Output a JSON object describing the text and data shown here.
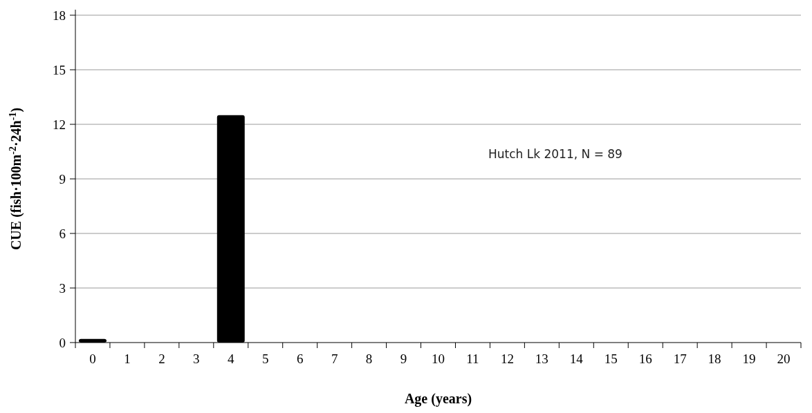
{
  "chart_data": {
    "type": "bar",
    "categories": [
      "0",
      "1",
      "2",
      "3",
      "4",
      "5",
      "6",
      "7",
      "8",
      "9",
      "10",
      "11",
      "12",
      "13",
      "14",
      "15",
      "16",
      "17",
      "18",
      "19",
      "20"
    ],
    "values": [
      0.2,
      0,
      0,
      0,
      12.5,
      0,
      0,
      0,
      0,
      0,
      0,
      0,
      0,
      0,
      0,
      0,
      0,
      0,
      0,
      0,
      0
    ],
    "color": "#000000",
    "ylim": [
      0,
      18
    ],
    "yticks": [
      0,
      3,
      6,
      9,
      12,
      15,
      18
    ],
    "grid": "y",
    "xlabel": "Age (years)",
    "ylabel": "CUE (fish·100m$^{-2}$·24h$^{-1}$)",
    "annotations": [
      "Hutch Lk 2011, N = 89"
    ]
  }
}
